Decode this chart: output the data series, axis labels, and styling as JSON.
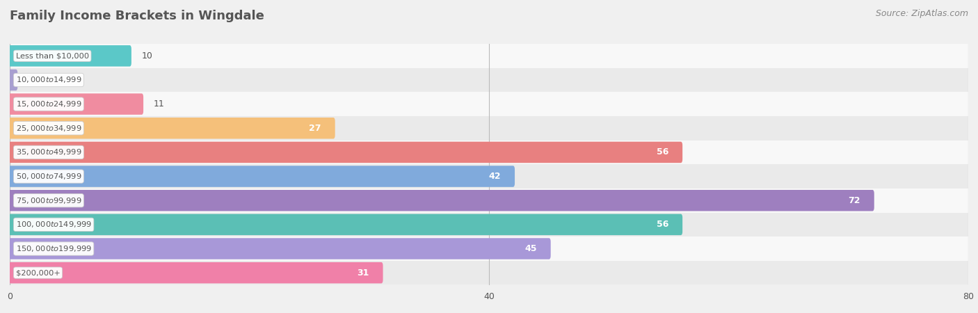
{
  "title": "Family Income Brackets in Wingdale",
  "source": "Source: ZipAtlas.com",
  "categories": [
    "Less than $10,000",
    "$10,000 to $14,999",
    "$15,000 to $24,999",
    "$25,000 to $34,999",
    "$35,000 to $49,999",
    "$50,000 to $74,999",
    "$75,000 to $99,999",
    "$100,000 to $149,999",
    "$150,000 to $199,999",
    "$200,000+"
  ],
  "values": [
    10,
    0,
    11,
    27,
    56,
    42,
    72,
    56,
    45,
    31
  ],
  "bar_colors": [
    "#5BC8C8",
    "#A89FD0",
    "#F08CA0",
    "#F5C07A",
    "#E88080",
    "#80AADC",
    "#9E7FBF",
    "#5BBFB5",
    "#A898D8",
    "#F080A8"
  ],
  "bg_color": "#f0f0f0",
  "row_bg_even": "#f8f8f8",
  "row_bg_odd": "#eaeaea",
  "xlim": [
    0,
    80
  ],
  "xticks": [
    0,
    40,
    80
  ],
  "title_color": "#555555",
  "label_color": "#555555",
  "value_color_inside": "#ffffff",
  "value_color_outside": "#555555",
  "inside_threshold": 20,
  "bar_height": 0.58,
  "label_fontsize": 9,
  "title_fontsize": 13,
  "source_fontsize": 9
}
